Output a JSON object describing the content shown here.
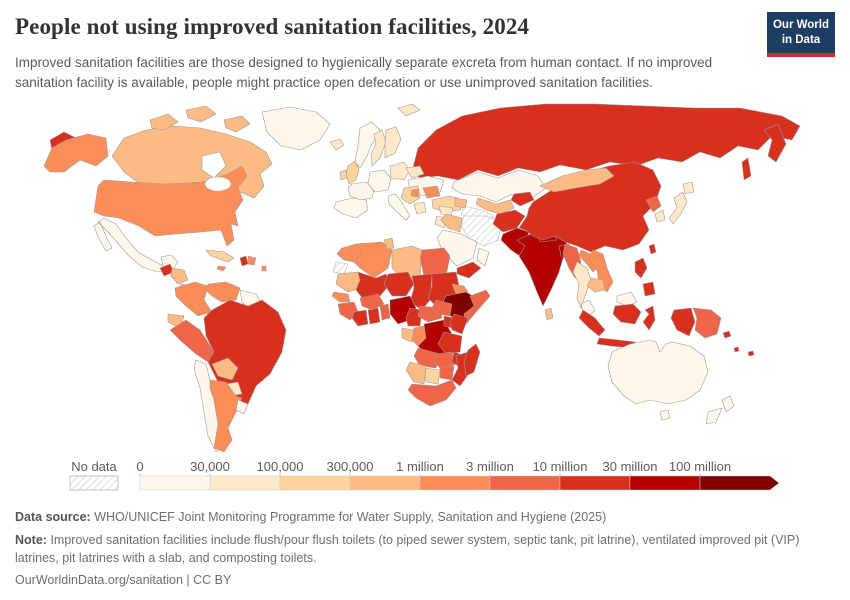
{
  "header": {
    "title": "People not using improved sanitation facilities, 2024",
    "subtitle": "Improved sanitation facilities are those designed to hygienically separate excreta from human contact. If no improved sanitation facility is available, people might practice open defecation or use unimproved sanitation facilities.",
    "logo": {
      "line1": "Our World",
      "line2": "in Data",
      "bg": "#1d3d63",
      "accent": "#d7282f"
    }
  },
  "legend": {
    "no_data_label": "No data",
    "tick_labels": [
      "0",
      "30,000",
      "100,000",
      "300,000",
      "1 million",
      "3 million",
      "10 million",
      "30 million",
      "100 million"
    ],
    "bin_colors": [
      "#fff7ec",
      "#fee8c8",
      "#fdd49e",
      "#fdbb84",
      "#fc8d59",
      "#ef6548",
      "#d7301f",
      "#b30000",
      "#7f0000"
    ],
    "label_color": "#5c5c5c",
    "tick_color": "#c4c4c4"
  },
  "map": {
    "stroke_color": "#9b9b9b"
  },
  "footer": {
    "data_source_label": "Data source:",
    "data_source": "WHO/UNICEF Joint Monitoring Programme for Water Supply, Sanitation and Hygiene (2025)",
    "note_label": "Note:",
    "note": "Improved sanitation facilities include flush/pour flush toilets (to piped sewer system, septic tank, pit latrine), ventilated improved pit (VIP) latrines, pit latrines with a slab, and composting toilets.",
    "citation": "OurWorldinData.org/sanitation | CC BY"
  },
  "chart_data": {
    "type": "choropleth_map",
    "title": "People not using improved sanitation facilities, 2024",
    "year": 2024,
    "legend_position": "bottom",
    "bin_ranges": [
      "0 - 30,000",
      "30,000 - 100,000",
      "100,000 - 300,000",
      "300,000 - 1 million",
      "1 - 3 million",
      "3 - 10 million",
      "10 - 30 million",
      "30 - 100 million",
      "100 million+"
    ],
    "no_data_bin": -1,
    "regions": [
      {
        "id": "russia",
        "name": "Russia",
        "bin": 6
      },
      {
        "id": "russia_kamchatka",
        "name": "Russia (Kamchatka)",
        "bin": 6
      },
      {
        "id": "sakhalin",
        "name": "Russia (Sakhalin)",
        "bin": 6
      },
      {
        "id": "chukotka",
        "name": "Russia (Chukotka)",
        "bin": 6
      },
      {
        "id": "svalbard",
        "name": "Svalbard",
        "bin": 1
      },
      {
        "id": "canada",
        "name": "Canada",
        "bin": 3
      },
      {
        "id": "arctic1",
        "name": "Canada (Arctic islands W)",
        "bin": 3
      },
      {
        "id": "arctic2",
        "name": "Canada (Arctic islands N)",
        "bin": 3
      },
      {
        "id": "arctic3",
        "name": "Canada (Arctic islands E)",
        "bin": 3
      },
      {
        "id": "greenland",
        "name": "Greenland",
        "bin": 0
      },
      {
        "id": "alaska",
        "name": "United States (Alaska)",
        "bin": 4
      },
      {
        "id": "usa",
        "name": "United States",
        "bin": 4
      },
      {
        "id": "great_lakes",
        "name": "Great Lakes",
        "bin": -2
      },
      {
        "id": "mexico",
        "name": "Mexico",
        "bin": 0
      },
      {
        "id": "guatemala",
        "name": "Guatemala",
        "bin": 6
      },
      {
        "id": "honduras_nicaragua",
        "name": "Honduras & Nicaragua",
        "bin": 3
      },
      {
        "id": "costa_rica_panama",
        "name": "Costa Rica & Panama",
        "bin": 2
      },
      {
        "id": "cuba",
        "name": "Cuba",
        "bin": 2
      },
      {
        "id": "jamaica",
        "name": "Jamaica",
        "bin": 4
      },
      {
        "id": "haiti",
        "name": "Haiti",
        "bin": 6
      },
      {
        "id": "dominican_republic",
        "name": "Dominican Republic",
        "bin": 4
      },
      {
        "id": "lesser_antilles",
        "name": "Lesser Antilles",
        "bin": 4
      },
      {
        "id": "colombia",
        "name": "Colombia",
        "bin": 4
      },
      {
        "id": "venezuela",
        "name": "Venezuela",
        "bin": 4
      },
      {
        "id": "guyanas",
        "name": "Guyana & Suriname",
        "bin": 0
      },
      {
        "id": "ecuador",
        "name": "Ecuador",
        "bin": 3
      },
      {
        "id": "peru",
        "name": "Peru",
        "bin": 5
      },
      {
        "id": "brazil",
        "name": "Brazil",
        "bin": 6
      },
      {
        "id": "bolivia",
        "name": "Bolivia",
        "bin": 3
      },
      {
        "id": "paraguay",
        "name": "Paraguay",
        "bin": 1
      },
      {
        "id": "chile",
        "name": "Chile",
        "bin": 0
      },
      {
        "id": "argentina",
        "name": "Argentina",
        "bin": 4
      },
      {
        "id": "uruguay",
        "name": "Uruguay",
        "bin": 0
      },
      {
        "id": "iceland",
        "name": "Iceland",
        "bin": 1
      },
      {
        "id": "norway",
        "name": "Norway",
        "bin": 0
      },
      {
        "id": "sweden",
        "name": "Sweden",
        "bin": 1
      },
      {
        "id": "finland",
        "name": "Finland",
        "bin": 1
      },
      {
        "id": "uk",
        "name": "United Kingdom",
        "bin": 2
      },
      {
        "id": "ireland",
        "name": "Ireland",
        "bin": 2
      },
      {
        "id": "iberia",
        "name": "Spain & Portugal",
        "bin": 0
      },
      {
        "id": "france",
        "name": "France",
        "bin": 0
      },
      {
        "id": "central_europe",
        "name": "Central Europe",
        "bin": 0
      },
      {
        "id": "italy",
        "name": "Italy",
        "bin": 0
      },
      {
        "id": "poland_baltics",
        "name": "Poland & Baltics",
        "bin": 1
      },
      {
        "id": "belarus",
        "name": "Belarus",
        "bin": 1
      },
      {
        "id": "ukraine",
        "name": "Ukraine",
        "bin": 0
      },
      {
        "id": "romania",
        "name": "Romania",
        "bin": 4
      },
      {
        "id": "balkans",
        "name": "Balkans",
        "bin": 2
      },
      {
        "id": "serbia",
        "name": "Serbia",
        "bin": 4
      },
      {
        "id": "greece",
        "name": "Greece",
        "bin": 1
      },
      {
        "id": "turkey",
        "name": "Turkey",
        "bin": 2
      },
      {
        "id": "kazakhstan",
        "name": "Kazakhstan",
        "bin": 0
      },
      {
        "id": "uzbekistan",
        "name": "Uzbekistan",
        "bin": 3
      },
      {
        "id": "turkmenistan",
        "name": "Turkmenistan",
        "bin": -1
      },
      {
        "id": "kyrgyz_tajik",
        "name": "Kyrgyzstan & Tajikistan",
        "bin": 6
      },
      {
        "id": "caucasus",
        "name": "Caucasus",
        "bin": 3
      },
      {
        "id": "syria",
        "name": "Syria",
        "bin": 1
      },
      {
        "id": "jordan",
        "name": "Jordan & Israel",
        "bin": 1
      },
      {
        "id": "iraq",
        "name": "Iraq",
        "bin": 3
      },
      {
        "id": "iran",
        "name": "Iran",
        "bin": -1
      },
      {
        "id": "saudi_arabia",
        "name": "Saudi Arabia",
        "bin": 0
      },
      {
        "id": "yemen",
        "name": "Yemen",
        "bin": 6
      },
      {
        "id": "oman",
        "name": "Oman",
        "bin": 0
      },
      {
        "id": "afghanistan",
        "name": "Afghanistan",
        "bin": 6
      },
      {
        "id": "pakistan",
        "name": "Pakistan",
        "bin": 7
      },
      {
        "id": "india",
        "name": "India",
        "bin": 7
      },
      {
        "id": "nepal",
        "name": "Nepal",
        "bin": 7
      },
      {
        "id": "bangladesh",
        "name": "Bangladesh",
        "bin": 7
      },
      {
        "id": "sri_lanka",
        "name": "Sri Lanka",
        "bin": 3
      },
      {
        "id": "china",
        "name": "China",
        "bin": 6
      },
      {
        "id": "mongolia",
        "name": "Mongolia",
        "bin": 3
      },
      {
        "id": "north_korea",
        "name": "North Korea",
        "bin": 5
      },
      {
        "id": "south_korea",
        "name": "South Korea",
        "bin": 1
      },
      {
        "id": "japan_honshu",
        "name": "Japan",
        "bin": 1
      },
      {
        "id": "japan_hokkaido",
        "name": "Japan (Hokkaido)",
        "bin": 1
      },
      {
        "id": "myanmar",
        "name": "Myanmar",
        "bin": 5
      },
      {
        "id": "laos",
        "name": "Laos",
        "bin": 4
      },
      {
        "id": "thailand",
        "name": "Thailand",
        "bin": 1
      },
      {
        "id": "vietnam",
        "name": "Vietnam",
        "bin": 4
      },
      {
        "id": "cambodia",
        "name": "Cambodia",
        "bin": 3
      },
      {
        "id": "malaysia",
        "name": "Malaysia",
        "bin": 0
      },
      {
        "id": "borneo_malaysia",
        "name": "Malaysia (Borneo)",
        "bin": 0
      },
      {
        "id": "indonesia_sumatra",
        "name": "Indonesia (Sumatra)",
        "bin": 6
      },
      {
        "id": "indonesia_java",
        "name": "Indonesia (Java)",
        "bin": 6
      },
      {
        "id": "indonesia_borneo",
        "name": "Indonesia (Kalimantan)",
        "bin": 6
      },
      {
        "id": "indonesia_sulawesi",
        "name": "Indonesia (Sulawesi)",
        "bin": 6
      },
      {
        "id": "indonesia_papua",
        "name": "Indonesia (Papua)",
        "bin": 6
      },
      {
        "id": "png",
        "name": "Papua New Guinea",
        "bin": 5
      },
      {
        "id": "philippines_luzon",
        "name": "Philippines (Luzon)",
        "bin": 6
      },
      {
        "id": "philippines_mindanao",
        "name": "Philippines (Mindanao)",
        "bin": 6
      },
      {
        "id": "taiwan",
        "name": "Taiwan",
        "bin": 6
      },
      {
        "id": "morocco",
        "name": "Morocco",
        "bin": 4
      },
      {
        "id": "western_sahara",
        "name": "Western Sahara",
        "bin": -1
      },
      {
        "id": "algeria",
        "name": "Algeria",
        "bin": 4
      },
      {
        "id": "tunisia",
        "name": "Tunisia",
        "bin": 3
      },
      {
        "id": "libya",
        "name": "Libya",
        "bin": 3
      },
      {
        "id": "egypt",
        "name": "Egypt",
        "bin": 5
      },
      {
        "id": "mauritania",
        "name": "Mauritania",
        "bin": 3
      },
      {
        "id": "mali",
        "name": "Mali",
        "bin": 6
      },
      {
        "id": "niger",
        "name": "Niger",
        "bin": 6
      },
      {
        "id": "chad",
        "name": "Chad",
        "bin": 6
      },
      {
        "id": "sudan",
        "name": "Sudan",
        "bin": 6
      },
      {
        "id": "eritrea",
        "name": "Eritrea",
        "bin": 4
      },
      {
        "id": "ethiopia",
        "name": "Ethiopia",
        "bin": 8
      },
      {
        "id": "somalia",
        "name": "Somalia",
        "bin": 5
      },
      {
        "id": "senegal",
        "name": "Senegal",
        "bin": 4
      },
      {
        "id": "guinea",
        "name": "Guinea",
        "bin": 5
      },
      {
        "id": "ivory_coast",
        "name": "Cote d'Ivoire",
        "bin": 6
      },
      {
        "id": "ghana",
        "name": "Ghana",
        "bin": 6
      },
      {
        "id": "togo_benin",
        "name": "Togo & Benin",
        "bin": 5
      },
      {
        "id": "burkina_faso",
        "name": "Burkina Faso",
        "bin": 5
      },
      {
        "id": "nigeria",
        "name": "Nigeria",
        "bin": 7
      },
      {
        "id": "cameroon",
        "name": "Cameroon",
        "bin": 6
      },
      {
        "id": "central_african_republic",
        "name": "Central African Republic",
        "bin": 5
      },
      {
        "id": "south_sudan",
        "name": "South Sudan",
        "bin": 5
      },
      {
        "id": "gabon",
        "name": "Gabon",
        "bin": 3
      },
      {
        "id": "congo",
        "name": "Congo",
        "bin": 4
      },
      {
        "id": "drc",
        "name": "Democratic Republic of Congo",
        "bin": 7
      },
      {
        "id": "uganda",
        "name": "Uganda",
        "bin": 6
      },
      {
        "id": "kenya",
        "name": "Kenya",
        "bin": 6
      },
      {
        "id": "tanzania",
        "name": "Tanzania",
        "bin": 6
      },
      {
        "id": "angola",
        "name": "Angola",
        "bin": 5
      },
      {
        "id": "zambia",
        "name": "Zambia",
        "bin": 5
      },
      {
        "id": "malawi",
        "name": "Malawi",
        "bin": 6
      },
      {
        "id": "mozambique",
        "name": "Mozambique",
        "bin": 6
      },
      {
        "id": "zimbabwe",
        "name": "Zimbabwe",
        "bin": 5
      },
      {
        "id": "botswana",
        "name": "Botswana",
        "bin": 2
      },
      {
        "id": "namibia",
        "name": "Namibia",
        "bin": 3
      },
      {
        "id": "south_africa",
        "name": "South Africa",
        "bin": 5
      },
      {
        "id": "madagascar",
        "name": "Madagascar",
        "bin": 6
      },
      {
        "id": "australia",
        "name": "Australia",
        "bin": 0
      },
      {
        "id": "tasmania",
        "name": "Australia (Tasmania)",
        "bin": 0
      },
      {
        "id": "nz_north",
        "name": "New Zealand (North Island)",
        "bin": 0
      },
      {
        "id": "nz_south",
        "name": "New Zealand (South Island)",
        "bin": 0
      },
      {
        "id": "pacific_solomon",
        "name": "Solomon Islands",
        "bin": 6
      },
      {
        "id": "pacific_vanuatu",
        "name": "Vanuatu",
        "bin": 6
      },
      {
        "id": "pacific_fiji",
        "name": "Fiji",
        "bin": 6
      }
    ]
  }
}
